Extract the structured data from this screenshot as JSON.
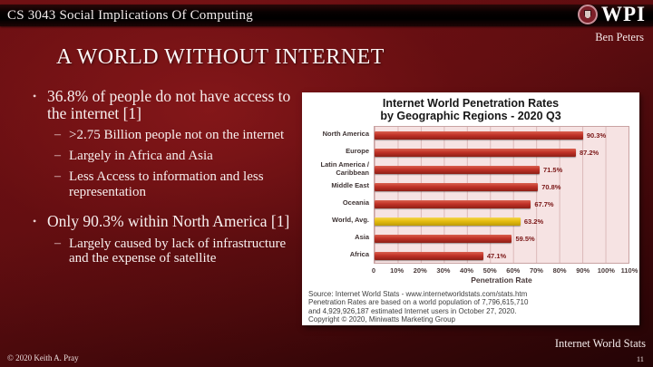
{
  "header": {
    "course_title": "CS 3043 Social Implications Of Computing",
    "logo_text": "WPI",
    "author": "Ben Peters"
  },
  "slide": {
    "title": "A WORLD WITHOUT INTERNET"
  },
  "bullets": [
    {
      "text": "36.8% of people do not have access to the internet [1]",
      "sub": [
        ">2.75 Billion people not on the internet",
        "Largely in Africa and Asia",
        "Less Access to information and less representation"
      ]
    },
    {
      "text": "Only 90.3% within North America [1]",
      "sub": [
        "Largely caused by lack of infrastructure and the expense of satellite"
      ]
    }
  ],
  "chart_data": {
    "type": "bar",
    "orientation": "horizontal",
    "title": "Internet World Penetration Rates",
    "subtitle": "by Geographic Regions -  2020 Q3",
    "categories": [
      "North America",
      "Europe",
      "Latin America /\nCaribbean",
      "Middle East",
      "Oceania",
      "World, Avg.",
      "Asia",
      "Africa"
    ],
    "values": [
      90.3,
      87.2,
      71.5,
      70.8,
      67.7,
      63.2,
      59.5,
      47.1
    ],
    "value_labels": [
      "90.3%",
      "87.2%",
      "71.5%",
      "70.8%",
      "67.7%",
      "63.2%",
      "59.5%",
      "47.1%"
    ],
    "highlight_index": 5,
    "bar_color": "#c03227",
    "highlight_color": "#e6bd0e",
    "plot_background": "#f6e3e3",
    "grid": true,
    "xlabel": "Penetration Rate",
    "xlim": [
      0,
      110
    ],
    "x_ticks": [
      "0",
      "10%",
      "20%",
      "30%",
      "40%",
      "50%",
      "60%",
      "70%",
      "80%",
      "90%",
      "100%",
      "110%"
    ],
    "source_lines": [
      "Source: Internet World Stats - www.internetworldstats.com/stats.htm",
      "Penetration Rates are based on a world population of 7,796,615,710",
      "and 4,929,926,187 estimated Internet users in October 27, 2020.",
      "Copyright © 2020, Miniwatts Marketing Group"
    ]
  },
  "footer": {
    "copyright": "© 2020 Keith A. Pray",
    "source_label": "Internet World Stats",
    "page_number": "11"
  }
}
